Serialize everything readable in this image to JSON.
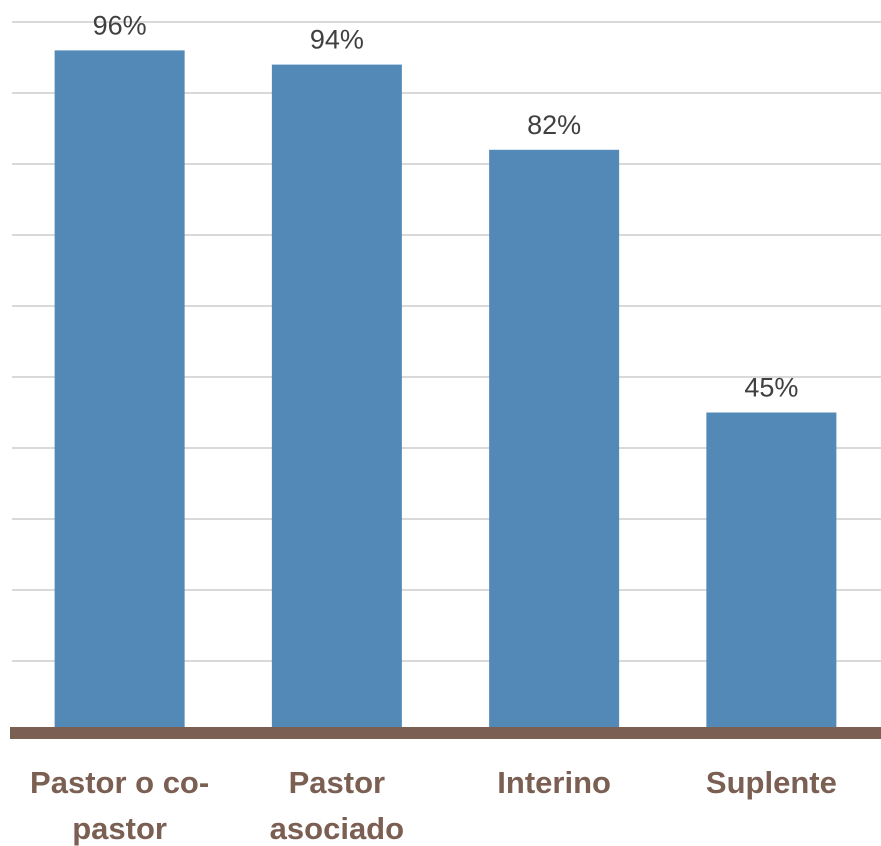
{
  "chart_data": {
    "type": "bar",
    "categories": [
      [
        "Pastor o co-",
        "pastor"
      ],
      [
        "Pastor",
        "asociado"
      ],
      [
        "Interino"
      ],
      [
        "Suplente"
      ]
    ],
    "values": [
      96,
      94,
      82,
      45
    ],
    "data_labels": [
      "96%",
      "94%",
      "82%",
      "45%"
    ],
    "ylim": [
      0,
      100
    ],
    "grid": true,
    "legend": "none",
    "colors": {
      "bar": "#5289b7",
      "gridline": "#d9d9d9",
      "axis": "#7a5f52",
      "category_text": "#7a5f52",
      "value_text": "#404040"
    }
  }
}
